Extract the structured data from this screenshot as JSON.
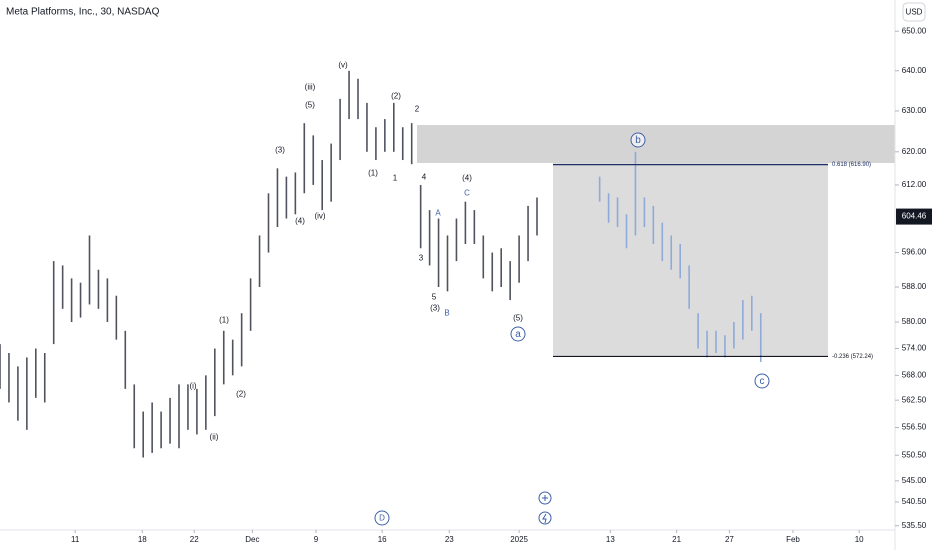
{
  "chart_data": {
    "type": "range_bars",
    "title": "Meta Platforms, Inc., 30, NASDAQ",
    "currency": "USD",
    "event_marker": "D",
    "log_scale": true,
    "ylim": [
      534.6,
      658
    ],
    "yticks": [
      {
        "value": 650,
        "label": "650.00"
      },
      {
        "value": 640,
        "label": "640.00"
      },
      {
        "value": 630,
        "label": "630.00"
      },
      {
        "value": 620,
        "label": "620.00"
      },
      {
        "value": 612,
        "label": "612.00"
      },
      {
        "value": 596,
        "label": "596.00"
      },
      {
        "value": 588,
        "label": "588.00"
      },
      {
        "value": 580,
        "label": "580.00"
      },
      {
        "value": 574,
        "label": "574.00"
      },
      {
        "value": 568,
        "label": "568.00"
      },
      {
        "value": 562.5,
        "label": "562.50"
      },
      {
        "value": 556.5,
        "label": "556.50"
      },
      {
        "value": 550.5,
        "label": "550.50"
      },
      {
        "value": 545,
        "label": "545.00"
      },
      {
        "value": 540.5,
        "label": "540.50"
      },
      {
        "value": 535.5,
        "label": "535.50"
      }
    ],
    "xlim": [
      0,
      100
    ],
    "xticks": [
      {
        "value": 8.4,
        "label": "11"
      },
      {
        "value": 15.9,
        "label": "18"
      },
      {
        "value": 21.7,
        "label": "22"
      },
      {
        "value": 28.2,
        "label": "Dec"
      },
      {
        "value": 35.3,
        "label": "9"
      },
      {
        "value": 42.7,
        "label": "16"
      },
      {
        "value": 50.2,
        "label": "23"
      },
      {
        "value": 58,
        "label": "2025"
      },
      {
        "value": 68.2,
        "label": "13"
      },
      {
        "value": 75.6,
        "label": "21"
      },
      {
        "value": 81.5,
        "label": "27"
      },
      {
        "value": 88.6,
        "label": "Feb"
      },
      {
        "value": 96,
        "label": "10"
      }
    ],
    "last_price": 604.46,
    "series": [
      {
        "color": "#50535e",
        "x": [
          0,
          1,
          2,
          3,
          4,
          5,
          6,
          7,
          8,
          9,
          10,
          11,
          12,
          13,
          14,
          15,
          16,
          17,
          18,
          19,
          20,
          21,
          22,
          23,
          24,
          25,
          26,
          27,
          28,
          29,
          30,
          31,
          32,
          33,
          34,
          35,
          36,
          37,
          38,
          39,
          40,
          41,
          42,
          43,
          44,
          45,
          46,
          47,
          48,
          49,
          50,
          51,
          52,
          53,
          54,
          55,
          56,
          57,
          58,
          59,
          60
        ],
        "high": [
          575,
          573,
          570,
          572,
          574,
          573,
          594,
          593,
          590,
          589,
          600,
          592,
          590,
          586,
          578,
          566,
          560,
          562,
          560,
          563,
          566,
          566,
          565,
          568,
          574,
          578,
          576,
          582,
          590,
          600,
          610,
          616,
          614,
          615,
          627,
          624,
          618,
          622,
          633,
          640,
          638,
          632,
          626,
          628,
          632,
          626,
          627,
          612,
          606,
          604,
          600,
          604,
          608,
          606,
          600,
          596,
          597,
          594,
          600,
          607,
          609
        ],
        "low": [
          565,
          562,
          558,
          556,
          563,
          562,
          575,
          583,
          580,
          581,
          584,
          583,
          580,
          576,
          565,
          552,
          550,
          551,
          552,
          553,
          552,
          556,
          555,
          556,
          559,
          566,
          568,
          570,
          578,
          588,
          596,
          602,
          604,
          605,
          610,
          612,
          606,
          608,
          618,
          628,
          628,
          620,
          618,
          620,
          620,
          618,
          617,
          597,
          593,
          588,
          587,
          594,
          598,
          598,
          590,
          587,
          588,
          585,
          589,
          594,
          600
        ]
      },
      {
        "color": "#8fa9d9",
        "x": [
          67,
          68,
          69,
          70,
          71,
          72,
          73,
          74,
          75,
          76,
          77,
          78,
          79,
          80,
          81,
          82,
          83,
          84,
          85
        ],
        "high": [
          614,
          610,
          609,
          605,
          620,
          609,
          607,
          603,
          600,
          598,
          593,
          582,
          578,
          578,
          577,
          580,
          585,
          586,
          582
        ],
        "low": [
          608,
          603,
          602,
          597,
          600,
          602,
          598,
          594,
          592,
          590,
          583,
          574,
          572,
          573,
          572,
          574,
          576,
          578,
          571
        ]
      }
    ],
    "levels": [
      {
        "value": 616.9,
        "label": "0.618 (616.90)",
        "color": "#1e2f66"
      },
      {
        "value": 572.24,
        "label": "-0.236 (572.24)",
        "color": "#131722"
      }
    ],
    "annotations": [
      {
        "text": "(v)",
        "color": "#131722"
      },
      {
        "text": "(iii)",
        "color": "#131722"
      },
      {
        "text": "(5)",
        "color": "#131722"
      },
      {
        "text": "(3)",
        "color": "#131722"
      },
      {
        "text": "(4)",
        "color": "#131722"
      },
      {
        "text": "(iv)",
        "color": "#131722"
      },
      {
        "text": "(1)",
        "color": "#131722"
      },
      {
        "text": "(2)",
        "color": "#131722"
      },
      {
        "text": "(i)",
        "color": "#131722"
      },
      {
        "text": "(ii)",
        "color": "#131722"
      },
      {
        "text": "(1)",
        "color": "#131722"
      },
      {
        "text": "(2)",
        "color": "#131722"
      },
      {
        "text": "2",
        "color": "#131722"
      },
      {
        "text": "1",
        "color": "#131722"
      },
      {
        "text": "4",
        "color": "#131722"
      },
      {
        "text": "(4)",
        "color": "#131722"
      },
      {
        "text": "C",
        "color": "#3d5fa8"
      },
      {
        "text": "A",
        "color": "#3d5fa8"
      },
      {
        "text": "3",
        "color": "#131722"
      },
      {
        "text": "5",
        "color": "#131722"
      },
      {
        "text": "(3)",
        "color": "#131722"
      },
      {
        "text": "B",
        "color": "#3d5fa8"
      },
      {
        "text": "(5)",
        "color": "#131722"
      },
      {
        "text": "a",
        "color": "#3d5fa8",
        "circled": true
      },
      {
        "text": "b",
        "color": "#3d5fa8",
        "circled": true
      },
      {
        "text": "c",
        "color": "#3d5fa8",
        "circled": true
      }
    ]
  }
}
